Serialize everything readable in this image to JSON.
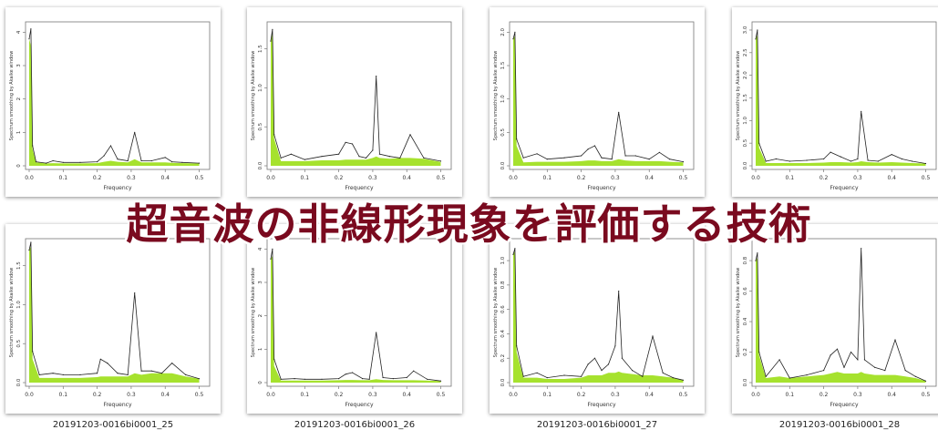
{
  "overlay_title": "超音波の非線形現象を評価する技術",
  "colors": {
    "fill": "#a6e22e",
    "line": "#222222",
    "frame": "#777777",
    "title": "#7a0a1f"
  },
  "chart_data": [
    {
      "type": "area",
      "caption": "",
      "xlabel": "Frequency",
      "ylabel": "Spectrum smoothing by Akaike window",
      "xticks": [
        "0.0",
        "0.1",
        "0.2",
        "0.3",
        "0.4",
        "0.5"
      ],
      "yticks": [
        "0",
        "1",
        "2",
        "3",
        "4"
      ],
      "ylim": [
        0,
        4.2
      ],
      "x": [
        0,
        0.005,
        0.01,
        0.02,
        0.05,
        0.07,
        0.1,
        0.15,
        0.2,
        0.22,
        0.24,
        0.26,
        0.29,
        0.31,
        0.33,
        0.36,
        0.4,
        0.42,
        0.45,
        0.5
      ],
      "values": [
        3.8,
        4.1,
        0.6,
        0.12,
        0.08,
        0.15,
        0.1,
        0.1,
        0.12,
        0.3,
        0.6,
        0.2,
        0.15,
        1.0,
        0.15,
        0.15,
        0.25,
        0.12,
        0.1,
        0.08
      ],
      "smooth": [
        3.8,
        3.6,
        0.5,
        0.1,
        0.07,
        0.08,
        0.07,
        0.07,
        0.08,
        0.12,
        0.15,
        0.12,
        0.1,
        0.2,
        0.1,
        0.1,
        0.1,
        0.09,
        0.08,
        0.07
      ]
    },
    {
      "type": "area",
      "caption": "",
      "xlabel": "Frequency",
      "ylabel": "Spectrum smoothing by Akaike window",
      "xticks": [
        "0.0",
        "0.1",
        "0.2",
        "0.3",
        "0.4",
        "0.5"
      ],
      "yticks": [
        "0.0",
        "0.5",
        "1.0",
        "1.5"
      ],
      "ylim": [
        0,
        1.8
      ],
      "x": [
        0,
        0.005,
        0.01,
        0.03,
        0.06,
        0.1,
        0.15,
        0.2,
        0.22,
        0.24,
        0.26,
        0.28,
        0.3,
        0.31,
        0.32,
        0.35,
        0.38,
        0.41,
        0.45,
        0.5
      ],
      "values": [
        1.6,
        1.75,
        0.4,
        0.1,
        0.15,
        0.08,
        0.12,
        0.15,
        0.3,
        0.28,
        0.12,
        0.1,
        0.2,
        1.15,
        0.15,
        0.12,
        0.1,
        0.4,
        0.1,
        0.06
      ],
      "smooth": [
        1.6,
        1.72,
        0.35,
        0.06,
        0.06,
        0.06,
        0.07,
        0.07,
        0.08,
        0.08,
        0.08,
        0.08,
        0.1,
        0.12,
        0.1,
        0.09,
        0.1,
        0.1,
        0.09,
        0.05
      ]
    },
    {
      "type": "area",
      "caption": "",
      "xlabel": "Frequency",
      "ylabel": "Spectrum smoothing by Akaike window",
      "xticks": [
        "0.0",
        "0.1",
        "0.2",
        "0.3",
        "0.4",
        "0.5"
      ],
      "yticks": [
        "0.0",
        "0.5",
        "1.0",
        "1.5",
        "2.0"
      ],
      "ylim": [
        0,
        2.1
      ],
      "x": [
        0,
        0.005,
        0.01,
        0.03,
        0.07,
        0.1,
        0.15,
        0.2,
        0.22,
        0.24,
        0.26,
        0.29,
        0.31,
        0.33,
        0.36,
        0.4,
        0.43,
        0.46,
        0.5
      ],
      "values": [
        1.9,
        2.0,
        0.4,
        0.12,
        0.18,
        0.1,
        0.12,
        0.15,
        0.25,
        0.3,
        0.12,
        0.1,
        0.8,
        0.15,
        0.15,
        0.1,
        0.2,
        0.1,
        0.06
      ],
      "smooth": [
        1.9,
        1.95,
        0.3,
        0.05,
        0.06,
        0.06,
        0.06,
        0.07,
        0.08,
        0.08,
        0.07,
        0.07,
        0.1,
        0.08,
        0.07,
        0.07,
        0.07,
        0.06,
        0.05
      ]
    },
    {
      "type": "area",
      "caption": "",
      "xlabel": "Frequency",
      "ylabel": "Spectrum smoothing by Akaike window",
      "xticks": [
        "0.0",
        "0.1",
        "0.2",
        "0.3",
        "0.4",
        "0.5"
      ],
      "yticks": [
        "0.0",
        "0.5",
        "1.0",
        "1.5",
        "2.0",
        "2.5",
        "3.0"
      ],
      "ylim": [
        0,
        3.1
      ],
      "x": [
        0,
        0.005,
        0.01,
        0.03,
        0.06,
        0.1,
        0.15,
        0.2,
        0.22,
        0.25,
        0.28,
        0.3,
        0.31,
        0.33,
        0.36,
        0.4,
        0.43,
        0.46,
        0.5
      ],
      "values": [
        2.8,
        3.0,
        0.5,
        0.1,
        0.15,
        0.1,
        0.12,
        0.15,
        0.3,
        0.2,
        0.1,
        0.15,
        1.2,
        0.12,
        0.1,
        0.25,
        0.15,
        0.1,
        0.05
      ],
      "smooth": [
        2.8,
        2.9,
        0.4,
        0.06,
        0.06,
        0.06,
        0.06,
        0.07,
        0.08,
        0.08,
        0.07,
        0.08,
        0.1,
        0.08,
        0.07,
        0.08,
        0.07,
        0.06,
        0.05
      ]
    },
    {
      "type": "area",
      "caption": "20191203-0016bi0001_25",
      "xlabel": "Frequency",
      "ylabel": "Spectrum smoothing by Akaike window",
      "xticks": [
        "0.0",
        "0.1",
        "0.2",
        "0.3",
        "0.4",
        "0.5"
      ],
      "yticks": [
        "0.0",
        "0.5",
        "1.0",
        "1.5"
      ],
      "ylim": [
        0,
        1.8
      ],
      "x": [
        0,
        0.005,
        0.01,
        0.03,
        0.07,
        0.1,
        0.15,
        0.2,
        0.21,
        0.23,
        0.26,
        0.29,
        0.31,
        0.33,
        0.36,
        0.39,
        0.42,
        0.46,
        0.5
      ],
      "values": [
        1.7,
        1.8,
        0.4,
        0.1,
        0.12,
        0.1,
        0.1,
        0.12,
        0.3,
        0.25,
        0.12,
        0.1,
        1.15,
        0.15,
        0.15,
        0.12,
        0.25,
        0.1,
        0.05
      ],
      "smooth": [
        1.7,
        1.75,
        0.3,
        0.06,
        0.06,
        0.06,
        0.06,
        0.07,
        0.08,
        0.08,
        0.08,
        0.08,
        0.12,
        0.1,
        0.12,
        0.12,
        0.12,
        0.08,
        0.05
      ]
    },
    {
      "type": "area",
      "caption": "20191203-0016bi0001_26",
      "xlabel": "Frequency",
      "ylabel": "Spectrum smoothing by Akaike window",
      "xticks": [
        "0.0",
        "0.1",
        "0.2",
        "0.3",
        "0.4",
        "0.5"
      ],
      "yticks": [
        "0",
        "1",
        "2",
        "3",
        "4"
      ],
      "ylim": [
        0,
        4.2
      ],
      "x": [
        0,
        0.005,
        0.01,
        0.03,
        0.07,
        0.1,
        0.15,
        0.2,
        0.22,
        0.24,
        0.27,
        0.29,
        0.31,
        0.33,
        0.36,
        0.4,
        0.42,
        0.46,
        0.5
      ],
      "values": [
        3.7,
        4.0,
        0.7,
        0.1,
        0.12,
        0.1,
        0.1,
        0.12,
        0.25,
        0.3,
        0.12,
        0.1,
        1.5,
        0.15,
        0.12,
        0.15,
        0.35,
        0.1,
        0.05
      ],
      "smooth": [
        3.7,
        3.8,
        0.5,
        0.06,
        0.06,
        0.06,
        0.06,
        0.07,
        0.08,
        0.08,
        0.07,
        0.07,
        0.1,
        0.08,
        0.07,
        0.07,
        0.07,
        0.06,
        0.05
      ]
    },
    {
      "type": "area",
      "caption": "20191203-0016bi0001_27",
      "xlabel": "Frequency",
      "ylabel": "Spectrum smoothing by Akaike window",
      "xticks": [
        "0.0",
        "0.1",
        "0.2",
        "0.3",
        "0.4",
        "0.5"
      ],
      "yticks": [
        "0.0",
        "0.2",
        "0.4",
        "0.6",
        "0.8",
        "1.0"
      ],
      "ylim": [
        0,
        1.15
      ],
      "x": [
        0,
        0.005,
        0.01,
        0.03,
        0.07,
        0.1,
        0.15,
        0.2,
        0.22,
        0.24,
        0.26,
        0.28,
        0.3,
        0.31,
        0.32,
        0.35,
        0.38,
        0.41,
        0.44,
        0.47,
        0.5
      ],
      "values": [
        1.05,
        1.1,
        0.3,
        0.05,
        0.08,
        0.04,
        0.06,
        0.05,
        0.15,
        0.2,
        0.1,
        0.15,
        0.3,
        0.75,
        0.2,
        0.1,
        0.05,
        0.38,
        0.08,
        0.04,
        0.02
      ],
      "smooth": [
        1.05,
        1.08,
        0.25,
        0.04,
        0.04,
        0.03,
        0.03,
        0.04,
        0.06,
        0.06,
        0.06,
        0.08,
        0.08,
        0.09,
        0.08,
        0.07,
        0.06,
        0.06,
        0.05,
        0.04,
        0.02
      ]
    },
    {
      "type": "area",
      "caption": "20191203-0016bi0001_28",
      "xlabel": "Frequency",
      "ylabel": "Spectrum smoothing by Akaike window",
      "xticks": [
        "0.0",
        "0.1",
        "0.2",
        "0.3",
        "0.4",
        "0.5"
      ],
      "yticks": [
        "0.0",
        "0.2",
        "0.4",
        "0.6",
        "0.8"
      ],
      "ylim": [
        0,
        0.92
      ],
      "x": [
        0,
        0.005,
        0.01,
        0.03,
        0.07,
        0.1,
        0.15,
        0.2,
        0.22,
        0.24,
        0.26,
        0.28,
        0.3,
        0.31,
        0.32,
        0.35,
        0.38,
        0.41,
        0.44,
        0.47,
        0.5
      ],
      "values": [
        0.8,
        0.85,
        0.2,
        0.04,
        0.15,
        0.03,
        0.05,
        0.08,
        0.18,
        0.22,
        0.1,
        0.2,
        0.15,
        0.88,
        0.15,
        0.1,
        0.08,
        0.28,
        0.08,
        0.04,
        0.01
      ],
      "smooth": [
        0.8,
        0.82,
        0.18,
        0.03,
        0.04,
        0.03,
        0.04,
        0.05,
        0.06,
        0.07,
        0.06,
        0.06,
        0.06,
        0.07,
        0.06,
        0.05,
        0.05,
        0.05,
        0.04,
        0.03,
        0.01
      ]
    }
  ]
}
